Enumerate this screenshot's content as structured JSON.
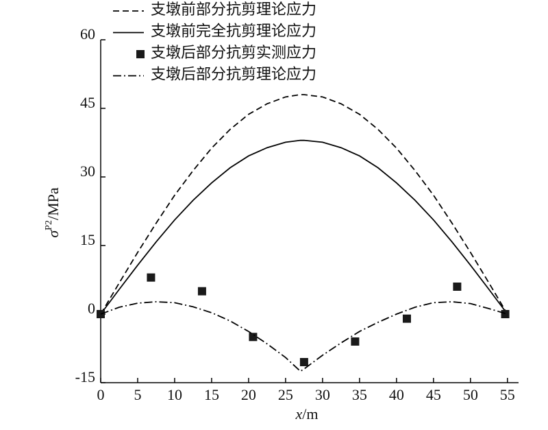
{
  "chart_data": {
    "type": "line",
    "x": [
      0,
      2.5,
      5,
      7.5,
      10,
      12.5,
      15,
      17.5,
      20,
      22.5,
      25,
      27,
      27.5,
      30,
      32.5,
      35,
      37.5,
      40,
      42.5,
      45,
      47.5,
      50,
      52.5,
      55
    ],
    "series": [
      {
        "name": "支墩前部分抗剪理论应力",
        "type": "line",
        "style": "dashed",
        "color": "#000000",
        "values": [
          0,
          6.8,
          13.5,
          19.9,
          26,
          31.4,
          36.3,
          40.4,
          43.7,
          46,
          47.5,
          48,
          48,
          47.5,
          46,
          43.7,
          40.4,
          36.3,
          31.4,
          26,
          19.9,
          13.5,
          6.8,
          0
        ]
      },
      {
        "name": "支墩前完全抗剪理论应力",
        "type": "line",
        "style": "solid",
        "color": "#000000",
        "values": [
          0,
          5.4,
          10.7,
          15.8,
          20.6,
          24.9,
          28.7,
          32,
          34.6,
          36.4,
          37.6,
          38,
          38,
          37.6,
          36.4,
          34.6,
          32,
          28.7,
          24.9,
          20.6,
          15.8,
          10.7,
          5.4,
          0
        ]
      },
      {
        "name": "支墩后部分抗剪实测应力",
        "type": "scatter",
        "marker": "square",
        "color": "#1a1a1a",
        "x": [
          0,
          6.8,
          13.7,
          20.6,
          27.5,
          34.4,
          41.4,
          48.2,
          54.7
        ],
        "values": [
          0,
          8,
          5,
          -5,
          -10.5,
          -6,
          -1,
          6,
          0
        ]
      },
      {
        "name": "支墩后部分抗剪理论应力",
        "type": "line",
        "style": "dashdot",
        "color": "#000000",
        "values": [
          0,
          1.5,
          2.4,
          2.7,
          2.5,
          1.6,
          0.3,
          -1.5,
          -3.8,
          -6.5,
          -9.5,
          -12.5,
          -12,
          -9,
          -6.3,
          -3.8,
          -1.8,
          0,
          1.5,
          2.5,
          2.7,
          2.3,
          1.2,
          0
        ]
      }
    ],
    "xlabel_var": "x",
    "xlabel_unit": "/m",
    "ylabel_symbol": "σ",
    "ylabel_sup": "P2",
    "ylabel_unit": "/MPa",
    "xlim": [
      0,
      56.5
    ],
    "xticks": [
      0,
      5,
      10,
      15,
      20,
      25,
      30,
      35,
      40,
      45,
      50,
      55
    ],
    "ylim": [
      -15,
      60
    ],
    "yticks": [
      -15,
      0,
      15,
      30,
      45,
      60
    ],
    "grid": false,
    "legend": "top"
  }
}
